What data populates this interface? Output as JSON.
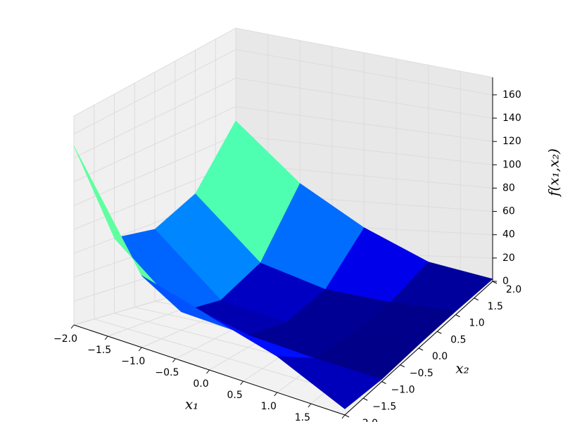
{
  "chart_data": {
    "type": "surface3d",
    "x_label": "x₁",
    "y_label": "x₂",
    "z_label": "f(x₁,x₂)",
    "x": [
      -2,
      -1,
      0,
      1,
      2
    ],
    "y": [
      -2,
      -1,
      0,
      1,
      2
    ],
    "z": [
      [
        150,
        60,
        45,
        30,
        5
      ],
      [
        60,
        15,
        10,
        5,
        2
      ],
      [
        55,
        10,
        2,
        3,
        3
      ],
      [
        70,
        25,
        10,
        5,
        3
      ],
      [
        110,
        70,
        40,
        15,
        2
      ]
    ],
    "xlim": [
      -2,
      2
    ],
    "ylim": [
      -2,
      2
    ],
    "zlim": [
      0,
      175
    ],
    "xticks": [
      {
        "value": -2,
        "label": "−2.0"
      },
      {
        "value": -1.5,
        "label": "−1.5"
      },
      {
        "value": -1,
        "label": "−1.0"
      },
      {
        "value": -0.5,
        "label": "−0.5"
      },
      {
        "value": 0,
        "label": "0.0"
      },
      {
        "value": 0.5,
        "label": "0.5"
      },
      {
        "value": 1,
        "label": "1.0"
      },
      {
        "value": 1.5,
        "label": "1.5"
      },
      {
        "value": 2,
        "label": "2.0"
      }
    ],
    "yticks": [
      {
        "value": -2,
        "label": "−2.0"
      },
      {
        "value": -1.5,
        "label": "−1.5"
      },
      {
        "value": -1,
        "label": "−1.0"
      },
      {
        "value": -0.5,
        "label": "−0.5"
      },
      {
        "value": 0,
        "label": "0.0"
      },
      {
        "value": 0.5,
        "label": "0.5"
      },
      {
        "value": 1,
        "label": "1.0"
      },
      {
        "value": 1.5,
        "label": "1.5"
      },
      {
        "value": 2,
        "label": "2.0"
      }
    ],
    "zticks": [
      0,
      20,
      40,
      60,
      80,
      100,
      120,
      140,
      160
    ],
    "colormap": "jet",
    "grid": true
  }
}
